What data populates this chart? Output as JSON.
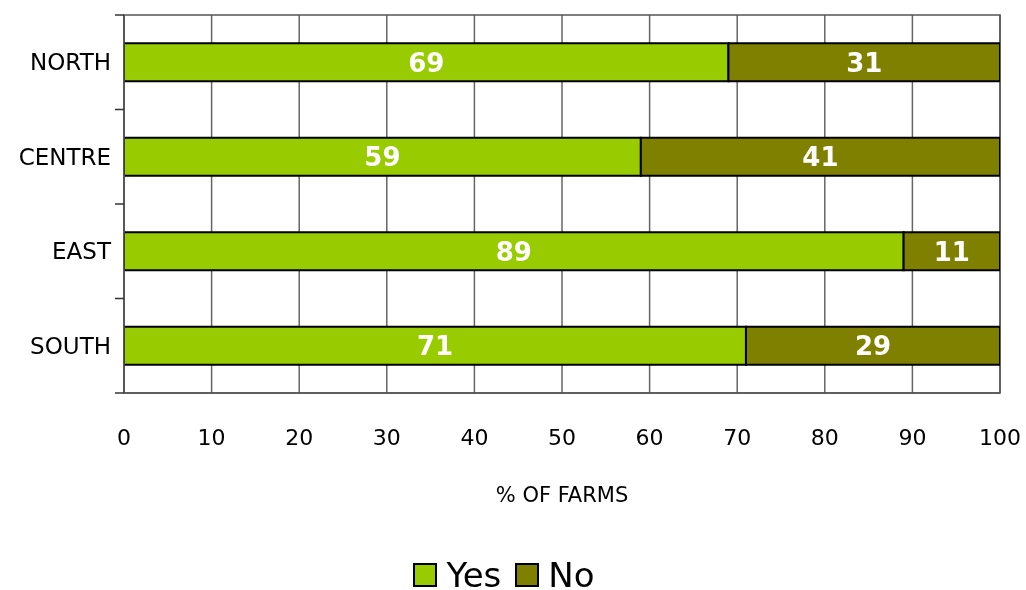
{
  "chart_data": {
    "type": "bar",
    "orientation": "horizontal",
    "stacked": true,
    "categories": [
      "NORTH",
      "CENTRE",
      "EAST",
      "SOUTH"
    ],
    "series": [
      {
        "name": "Yes",
        "color": "#99cc00",
        "values": [
          69,
          59,
          89,
          71
        ]
      },
      {
        "name": "No",
        "color": "#808000",
        "values": [
          31,
          41,
          11,
          29
        ]
      }
    ],
    "xlabel": "% OF FARMS",
    "xlim": [
      0,
      100
    ],
    "xticks": [
      0,
      10,
      20,
      30,
      40,
      50,
      60,
      70,
      80,
      90,
      100
    ],
    "grid": "x",
    "legend": "bottom",
    "data_labels": true
  }
}
